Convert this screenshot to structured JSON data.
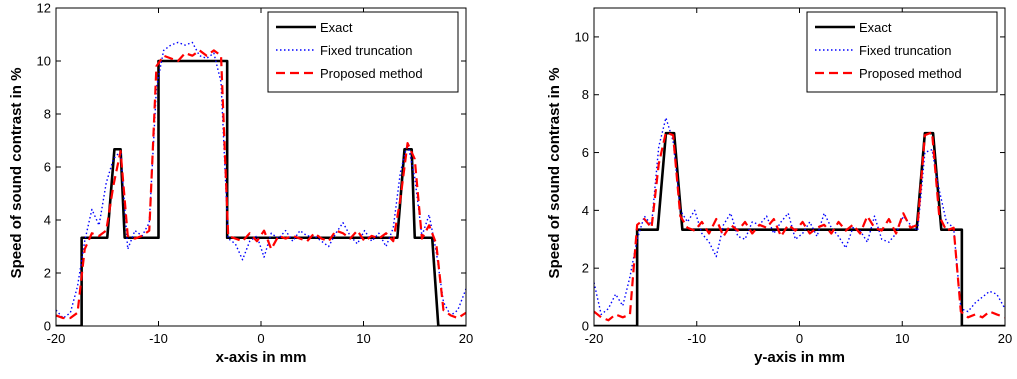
{
  "chart_data": [
    {
      "type": "line",
      "xlabel": "x-axis in mm",
      "ylabel": "Speed of sound contrast in %",
      "xlim": [
        -20,
        20
      ],
      "ylim": [
        0,
        12
      ],
      "xticks": [
        -20,
        -10,
        0,
        10,
        20
      ],
      "yticks": [
        0,
        2,
        4,
        6,
        8,
        10,
        12
      ],
      "grid": false,
      "legend_position": "top-right",
      "series": [
        {
          "name": "Exact",
          "color": "#000000",
          "style": "solid",
          "x": [
            -20,
            -17.5,
            -17.5,
            -15.0,
            -14.3,
            -13.7,
            -13.3,
            -10.0,
            -10.0,
            -3.3,
            -3.3,
            13.3,
            14.0,
            14.7,
            15.0,
            16.7,
            17.3,
            20
          ],
          "y": [
            0,
            0,
            3.33,
            3.33,
            6.67,
            6.67,
            3.33,
            3.33,
            10.0,
            10.0,
            3.33,
            3.33,
            6.67,
            6.67,
            3.33,
            3.33,
            0,
            0
          ]
        },
        {
          "name": "Fixed truncation",
          "color": "#0000ff",
          "style": "dotted",
          "x": [
            -20,
            -19.3,
            -18.6,
            -17.9,
            -17.2,
            -16.5,
            -15.8,
            -15.1,
            -14.4,
            -13.7,
            -13.0,
            -12.3,
            -11.6,
            -10.9,
            -10.2,
            -9.5,
            -8.8,
            -8.1,
            -7.4,
            -6.7,
            -6.0,
            -5.3,
            -4.6,
            -3.9,
            -3.2,
            -2.5,
            -1.8,
            -1.1,
            -0.4,
            0.3,
            1.0,
            1.7,
            2.4,
            3.1,
            3.8,
            4.5,
            5.2,
            5.9,
            6.6,
            7.3,
            8.0,
            8.7,
            9.4,
            10.1,
            10.8,
            11.5,
            12.2,
            12.9,
            13.6,
            14.3,
            15.0,
            15.7,
            16.4,
            17.1,
            17.8,
            18.5,
            19.2,
            20
          ],
          "y": [
            0.6,
            0.3,
            0.5,
            1.5,
            3.2,
            4.4,
            3.8,
            5.4,
            6.3,
            6.6,
            2.9,
            3.6,
            3.4,
            3.9,
            9.0,
            10.4,
            10.6,
            10.7,
            10.6,
            10.7,
            10.2,
            10.1,
            10.3,
            9.2,
            3.3,
            3.1,
            2.5,
            3.2,
            3.4,
            2.6,
            3.5,
            3.3,
            3.6,
            3.2,
            3.6,
            3.4,
            3.4,
            3.2,
            3.0,
            3.5,
            3.9,
            3.4,
            3.1,
            3.6,
            3.2,
            3.5,
            3.0,
            3.7,
            5.8,
            6.9,
            5.6,
            3.4,
            4.2,
            2.8,
            0.9,
            0.4,
            0.6,
            1.4
          ]
        },
        {
          "name": "Proposed method",
          "color": "#ff0000",
          "style": "dashed",
          "x": [
            -20,
            -19.3,
            -18.6,
            -17.9,
            -17.2,
            -16.5,
            -15.8,
            -15.1,
            -14.4,
            -13.7,
            -13.0,
            -12.3,
            -11.6,
            -10.9,
            -10.2,
            -9.5,
            -8.8,
            -8.1,
            -7.4,
            -6.7,
            -6.0,
            -5.3,
            -4.6,
            -3.9,
            -3.2,
            -2.5,
            -1.8,
            -1.1,
            -0.4,
            0.3,
            1.0,
            1.7,
            2.4,
            3.1,
            3.8,
            4.5,
            5.2,
            5.9,
            6.6,
            7.3,
            8.0,
            8.7,
            9.4,
            10.1,
            10.8,
            11.5,
            12.2,
            12.9,
            13.6,
            14.3,
            15.0,
            15.7,
            16.4,
            17.1,
            17.8,
            18.5,
            19.2,
            20
          ],
          "y": [
            0.4,
            0.3,
            0.3,
            0.5,
            2.9,
            3.5,
            3.4,
            3.6,
            5.3,
            6.6,
            3.4,
            3.3,
            3.4,
            3.6,
            9.8,
            10.2,
            10.1,
            10.0,
            10.3,
            10.2,
            10.4,
            10.2,
            10.4,
            10.2,
            3.4,
            3.3,
            3.2,
            3.5,
            3.2,
            3.6,
            2.9,
            3.4,
            3.3,
            3.4,
            3.3,
            3.2,
            3.5,
            3.3,
            3.2,
            3.6,
            3.5,
            3.3,
            3.6,
            3.2,
            3.4,
            3.3,
            3.5,
            3.2,
            4.8,
            6.9,
            6.3,
            3.3,
            3.8,
            3.1,
            0.6,
            0.4,
            0.3,
            0.5
          ]
        }
      ]
    },
    {
      "type": "line",
      "xlabel": "y-axis in mm",
      "ylabel": "Speed of sound contrast in %",
      "xlim": [
        -20,
        20
      ],
      "ylim": [
        0,
        11
      ],
      "xticks": [
        -20,
        -10,
        0,
        10,
        20
      ],
      "yticks": [
        0,
        2,
        4,
        6,
        8,
        10
      ],
      "grid": false,
      "legend_position": "top-right",
      "series": [
        {
          "name": "Exact",
          "color": "#000000",
          "style": "solid",
          "x": [
            -20,
            -15.8,
            -15.8,
            -13.8,
            -13.0,
            -12.2,
            -11.4,
            11.4,
            12.2,
            13.0,
            13.8,
            15.8,
            15.8,
            20
          ],
          "y": [
            0,
            0,
            3.33,
            3.33,
            6.67,
            6.67,
            3.33,
            3.33,
            6.67,
            6.67,
            3.33,
            3.33,
            0,
            0
          ]
        },
        {
          "name": "Fixed truncation",
          "color": "#0000ff",
          "style": "dotted",
          "x": [
            -20,
            -19.3,
            -18.6,
            -17.9,
            -17.2,
            -16.5,
            -15.8,
            -15.1,
            -14.4,
            -13.7,
            -13.0,
            -12.3,
            -11.6,
            -10.9,
            -10.2,
            -9.5,
            -8.8,
            -8.1,
            -7.4,
            -6.7,
            -6.0,
            -5.3,
            -4.6,
            -3.9,
            -3.2,
            -2.5,
            -1.8,
            -1.1,
            -0.4,
            0.3,
            1.0,
            1.7,
            2.4,
            3.1,
            3.8,
            4.5,
            5.2,
            5.9,
            6.6,
            7.3,
            8.0,
            8.7,
            9.4,
            10.1,
            10.8,
            11.5,
            12.2,
            12.9,
            13.6,
            14.3,
            15.0,
            15.7,
            16.4,
            17.1,
            17.8,
            18.5,
            19.2,
            20
          ],
          "y": [
            1.5,
            0.4,
            0.6,
            1.1,
            0.7,
            1.7,
            3.0,
            3.8,
            3.5,
            6.2,
            7.2,
            6.4,
            4.0,
            3.6,
            4.0,
            3.2,
            2.9,
            2.4,
            3.5,
            3.9,
            3.1,
            3.0,
            3.6,
            3.5,
            3.8,
            3.2,
            3.6,
            3.9,
            3.0,
            3.2,
            3.6,
            3.1,
            3.9,
            3.4,
            3.1,
            2.7,
            3.4,
            3.3,
            2.9,
            3.8,
            3.0,
            2.9,
            3.2,
            3.8,
            3.5,
            3.3,
            6.0,
            6.1,
            4.7,
            3.6,
            3.4,
            0.6,
            0.5,
            0.8,
            1.0,
            1.2,
            1.1,
            0.6
          ]
        },
        {
          "name": "Proposed method",
          "color": "#ff0000",
          "style": "dashed",
          "x": [
            -20,
            -19.3,
            -18.6,
            -17.9,
            -17.2,
            -16.5,
            -15.8,
            -15.1,
            -14.4,
            -13.7,
            -13.0,
            -12.3,
            -11.6,
            -10.9,
            -10.2,
            -9.5,
            -8.8,
            -8.1,
            -7.4,
            -6.7,
            -6.0,
            -5.3,
            -4.6,
            -3.9,
            -3.2,
            -2.5,
            -1.8,
            -1.1,
            -0.4,
            0.3,
            1.0,
            1.7,
            2.4,
            3.1,
            3.8,
            4.5,
            5.2,
            5.9,
            6.6,
            7.3,
            8.0,
            8.7,
            9.4,
            10.1,
            10.8,
            11.5,
            12.2,
            12.9,
            13.6,
            14.3,
            15.0,
            15.7,
            16.4,
            17.1,
            17.8,
            18.5,
            19.2,
            20
          ],
          "y": [
            0.5,
            0.3,
            0.2,
            0.4,
            0.3,
            0.4,
            3.5,
            3.7,
            3.4,
            5.6,
            6.7,
            6.6,
            3.8,
            3.4,
            3.3,
            3.6,
            3.2,
            3.7,
            3.1,
            3.5,
            3.3,
            3.6,
            3.2,
            3.5,
            3.4,
            3.7,
            3.1,
            3.5,
            3.3,
            3.6,
            3.2,
            3.4,
            3.5,
            3.2,
            3.6,
            3.3,
            3.5,
            3.2,
            3.8,
            3.4,
            3.3,
            3.7,
            3.2,
            3.9,
            3.4,
            3.5,
            6.6,
            6.7,
            3.8,
            3.3,
            3.4,
            0.5,
            0.3,
            0.4,
            0.3,
            0.5,
            0.4,
            0.3
          ]
        }
      ]
    }
  ]
}
